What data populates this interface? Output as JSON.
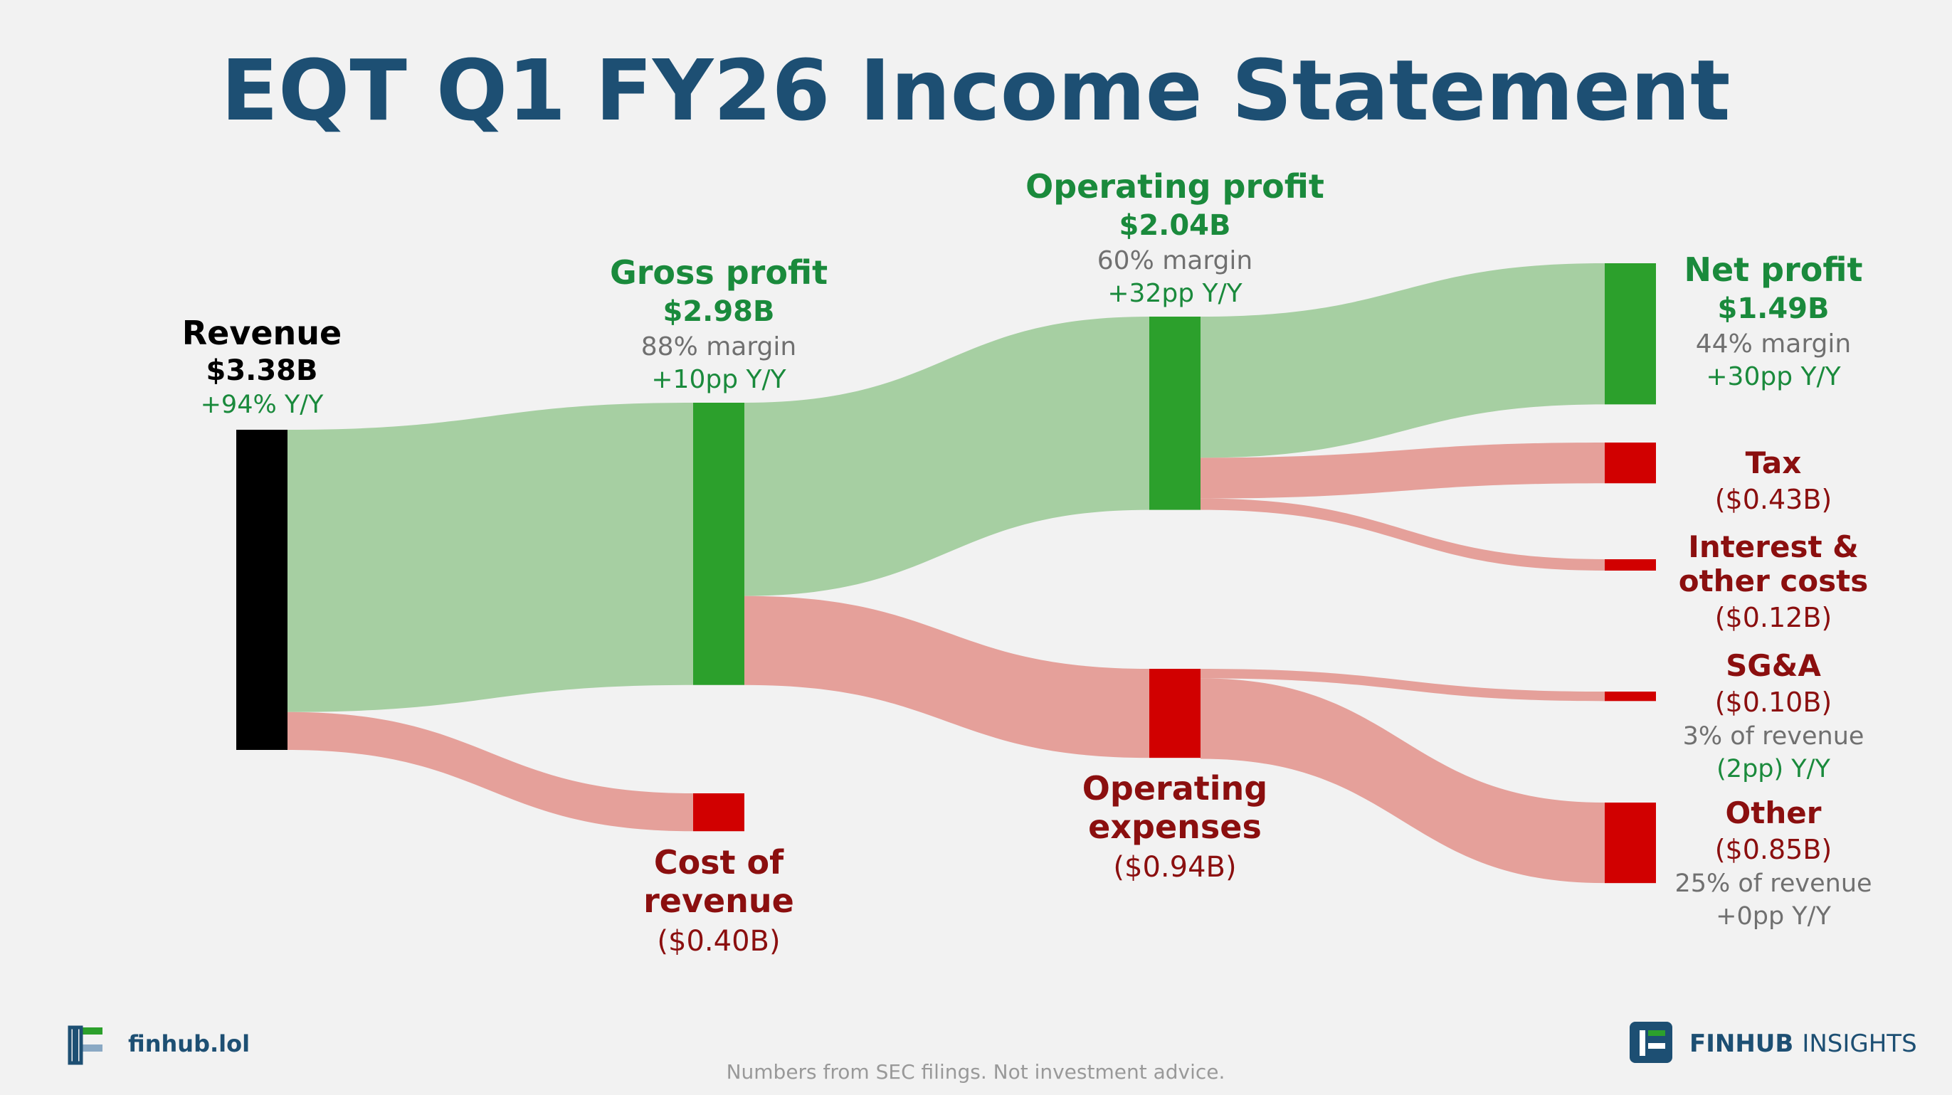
{
  "title": "EQT Q1 FY26 Income Statement",
  "footer": {
    "site": "finhub.lol",
    "note": "Numbers from SEC filings. Not investment advice.",
    "brand_bold": "FINHUB",
    "brand_light": "INSIGHTS"
  },
  "colors": {
    "profit_node": "#2ca02c",
    "profit_flow": "#a6cfa2",
    "cost_node": "#d10000",
    "cost_flow": "#e5a09a",
    "revenue_node": "#000000",
    "profit_text": "#1a8a3c",
    "cost_text": "#8b0f0f",
    "muted_text": "#707070",
    "title": "#1d4f73"
  },
  "chart_data": {
    "type": "sankey",
    "title": "EQT Q1 FY26 Income Statement",
    "unit": "$B",
    "nodes": [
      {
        "id": "revenue",
        "name": "Revenue",
        "value": "$3.38B",
        "amount": 3.38,
        "kind": "revenue",
        "yoy": "+94% Y/Y"
      },
      {
        "id": "gross",
        "name": "Gross profit",
        "value": "$2.98B",
        "amount": 2.98,
        "kind": "profit",
        "margin": "88% margin",
        "yoy": "+10pp Y/Y"
      },
      {
        "id": "cor",
        "name": "Cost of revenue",
        "value": "($0.40B)",
        "amount": 0.4,
        "kind": "cost"
      },
      {
        "id": "opprofit",
        "name": "Operating profit",
        "value": "$2.04B",
        "amount": 2.04,
        "kind": "profit",
        "margin": "60% margin",
        "yoy": "+32pp Y/Y"
      },
      {
        "id": "opex",
        "name": "Operating expenses",
        "value": "($0.94B)",
        "amount": 0.94,
        "kind": "cost"
      },
      {
        "id": "net",
        "name": "Net profit",
        "value": "$1.49B",
        "amount": 1.49,
        "kind": "profit",
        "margin": "44% margin",
        "yoy": "+30pp Y/Y"
      },
      {
        "id": "tax",
        "name": "Tax",
        "value": "($0.43B)",
        "amount": 0.43,
        "kind": "cost"
      },
      {
        "id": "interest",
        "name": "Interest & other costs",
        "value": "($0.12B)",
        "amount": 0.12,
        "kind": "cost"
      },
      {
        "id": "sga",
        "name": "SG&A",
        "value": "($0.10B)",
        "amount": 0.1,
        "kind": "cost",
        "share": "3% of revenue",
        "yoy": "(2pp) Y/Y"
      },
      {
        "id": "other",
        "name": "Other",
        "value": "($0.85B)",
        "amount": 0.85,
        "kind": "cost",
        "share": "25% of revenue",
        "yoy": "+0pp Y/Y"
      }
    ],
    "links": [
      {
        "source": "revenue",
        "target": "gross",
        "value": 2.98
      },
      {
        "source": "revenue",
        "target": "cor",
        "value": 0.4
      },
      {
        "source": "gross",
        "target": "opprofit",
        "value": 2.04
      },
      {
        "source": "gross",
        "target": "opex",
        "value": 0.94
      },
      {
        "source": "opprofit",
        "target": "net",
        "value": 1.49
      },
      {
        "source": "opprofit",
        "target": "tax",
        "value": 0.43
      },
      {
        "source": "opprofit",
        "target": "interest",
        "value": 0.12
      },
      {
        "source": "opex",
        "target": "sga",
        "value": 0.1
      },
      {
        "source": "opex",
        "target": "other",
        "value": 0.85
      }
    ]
  }
}
